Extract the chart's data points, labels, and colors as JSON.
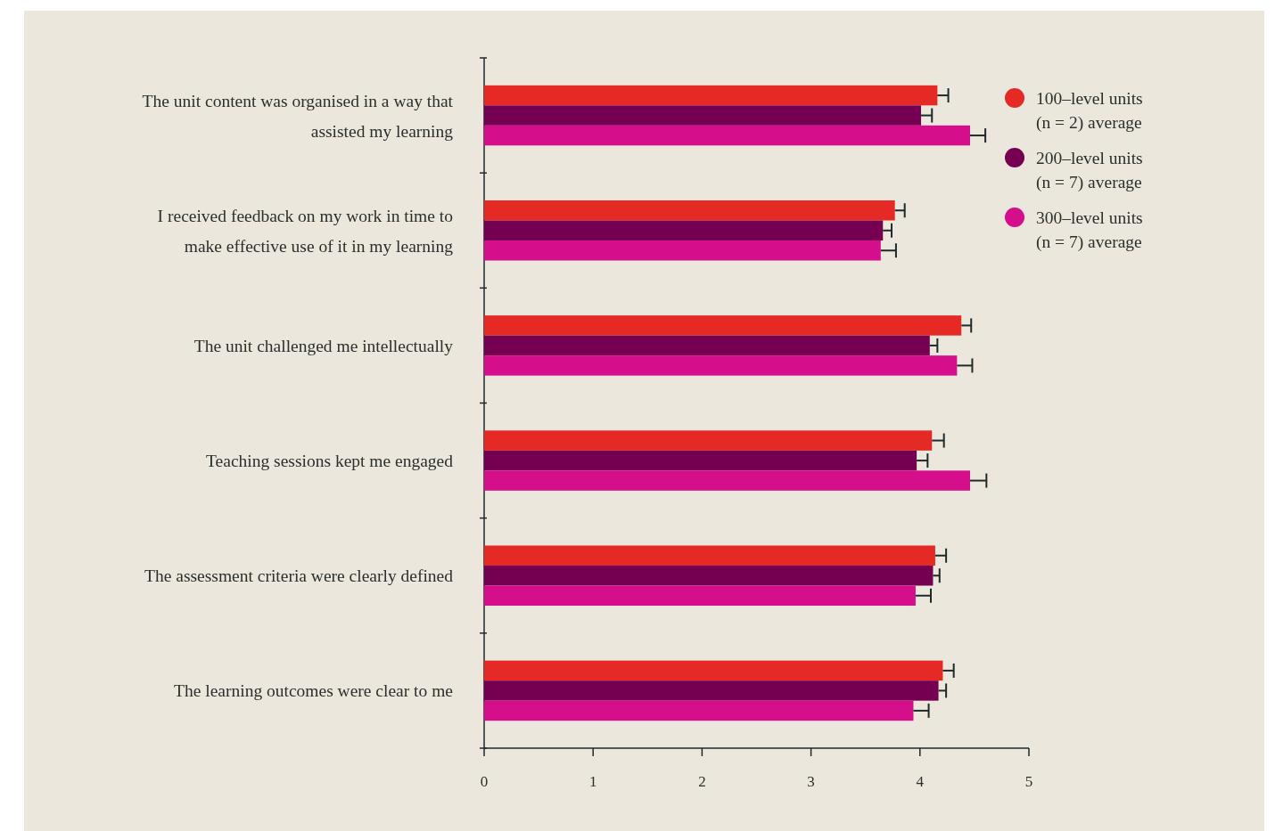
{
  "chart_data": {
    "type": "bar",
    "orientation": "horizontal",
    "categories": [
      "The unit content was organised in a way that assisted my learning",
      "I received feedback on my work in time to make effective use of it in my learning",
      "The unit challenged me intellectually",
      "Teaching sessions kept me engaged",
      "The assessment criteria were clearly defined",
      "The learning outcomes were clear to me"
    ],
    "series": [
      {
        "name": "100–level units (n = 2) average",
        "color": "#e52a25",
        "values": [
          4.16,
          3.77,
          4.38,
          4.11,
          4.14,
          4.21
        ],
        "errors": [
          0.1,
          0.09,
          0.09,
          0.11,
          0.1,
          0.1
        ]
      },
      {
        "name": "200–level units (n = 7)  average",
        "color": "#750051",
        "values": [
          4.01,
          3.66,
          4.09,
          3.97,
          4.12,
          4.17
        ],
        "errors": [
          0.1,
          0.08,
          0.07,
          0.1,
          0.06,
          0.07
        ]
      },
      {
        "name": "300–level units (n = 7) average",
        "color": "#d50e8c",
        "values": [
          4.46,
          3.64,
          4.34,
          4.46,
          3.96,
          3.94
        ],
        "errors": [
          0.14,
          0.14,
          0.14,
          0.15,
          0.14,
          0.14
        ]
      }
    ],
    "xlim": [
      0,
      5
    ],
    "xticks": [
      0,
      1,
      2,
      3,
      4,
      5
    ],
    "legend": "top right"
  }
}
